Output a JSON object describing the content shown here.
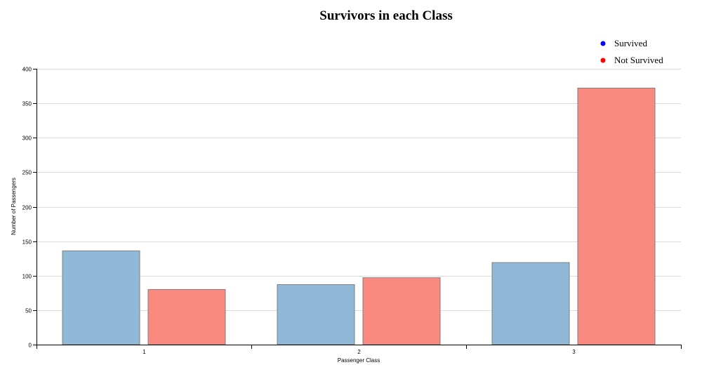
{
  "chart_data": {
    "type": "bar",
    "title": "Survivors in each Class",
    "xlabel": "Passenger Class",
    "ylabel": "Number of Passengers",
    "categories": [
      "1",
      "2",
      "3"
    ],
    "series": [
      {
        "name": "Survived",
        "values": [
          136,
          87,
          119
        ],
        "color": "#8fb9d6",
        "legend_color": "#0000ff"
      },
      {
        "name": "Not Survived",
        "values": [
          80,
          97,
          372
        ],
        "color": "#fa8a80",
        "legend_color": "#ff0000"
      }
    ],
    "yticks": [
      "0",
      "50",
      "100",
      "150",
      "200",
      "250",
      "300",
      "350",
      "400"
    ],
    "ylim": [
      0,
      400
    ],
    "grid": true,
    "legend_position": "top-right"
  }
}
